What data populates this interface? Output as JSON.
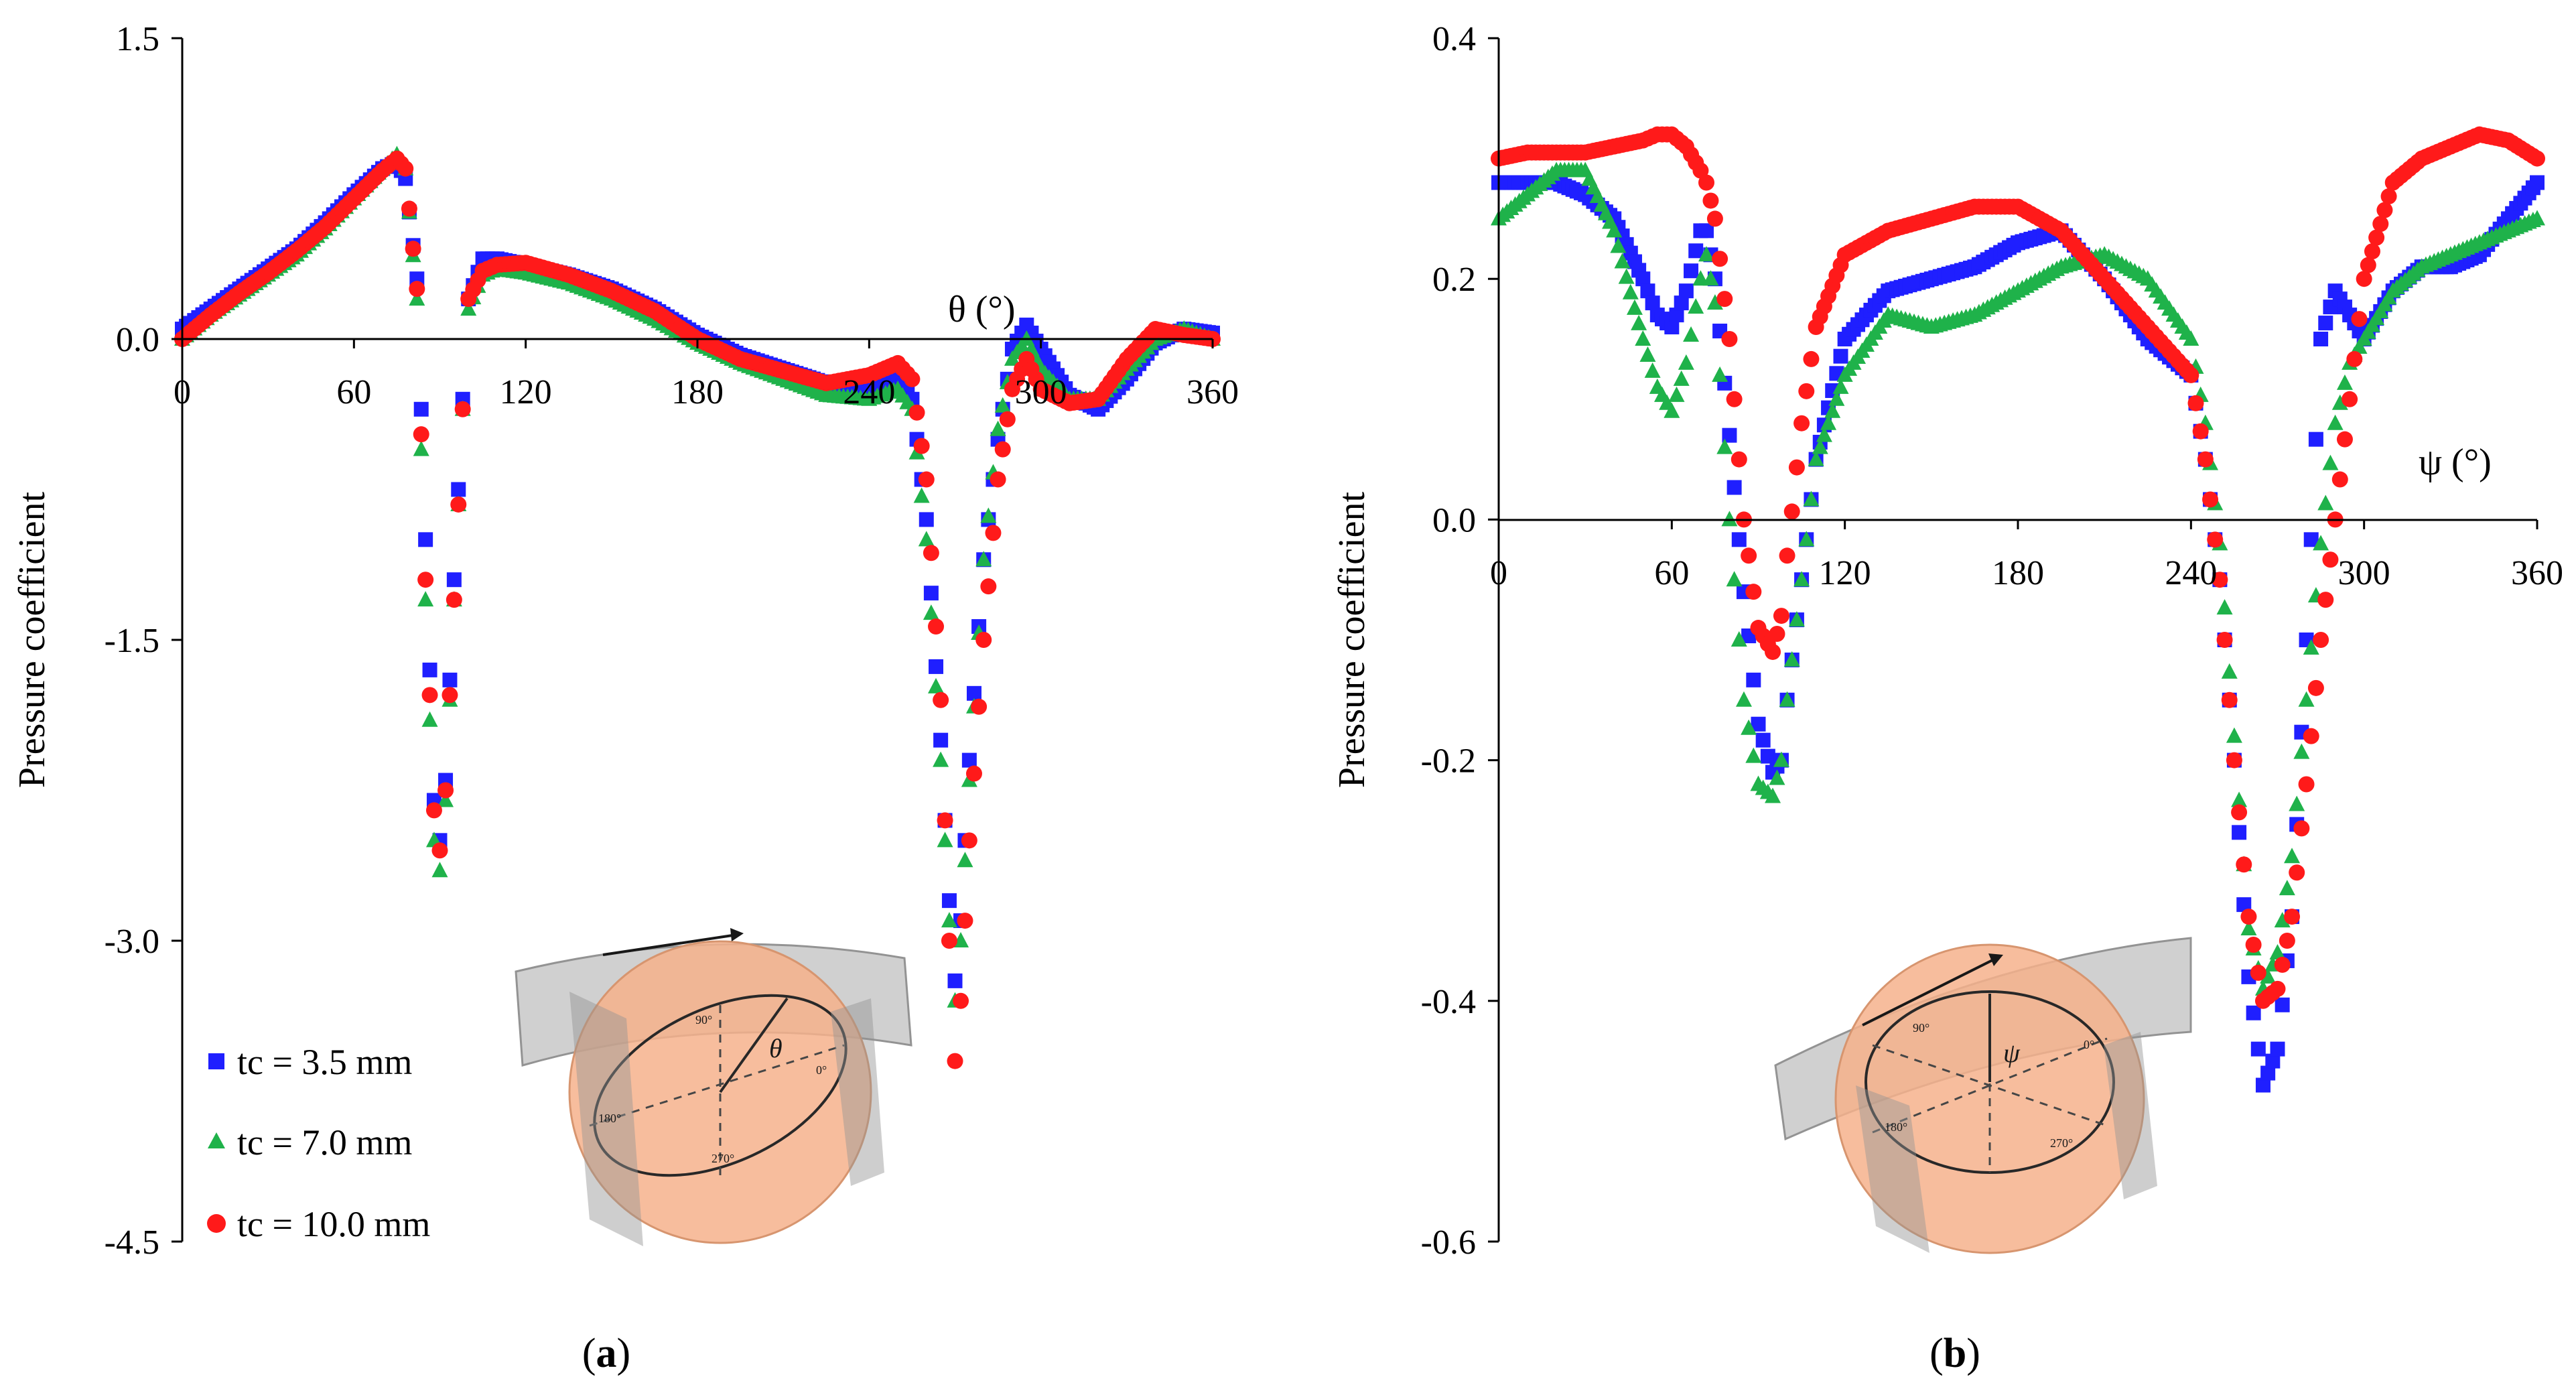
{
  "chart_data": [
    {
      "panel": "a",
      "type": "scatter",
      "caption": "(a)",
      "caption_letter": "a",
      "xlabel": "θ (°)",
      "ylabel": "Pressure coefficient",
      "xlim": [
        0,
        360
      ],
      "ylim": [
        -4.5,
        1.5
      ],
      "x_ticks": [
        "0",
        "60",
        "120",
        "180",
        "240",
        "300",
        "360"
      ],
      "y_ticks": [
        "1.5",
        "0.0",
        "-1.5",
        "-3.0",
        "-4.5"
      ],
      "legend_position": "bottom-left",
      "grid": false,
      "series": [
        {
          "name": "tc = 3.5 mm",
          "color": "#1f1fff",
          "marker": "square",
          "x": [
            0,
            10,
            20,
            30,
            40,
            50,
            60,
            70,
            75,
            78,
            82,
            85,
            88,
            90,
            92,
            95,
            98,
            100,
            105,
            110,
            120,
            135,
            150,
            165,
            180,
            195,
            210,
            225,
            240,
            250,
            255,
            260,
            265,
            268,
            270,
            272,
            275,
            280,
            285,
            290,
            295,
            300,
            310,
            320,
            330,
            340,
            350,
            360
          ],
          "y": [
            0.05,
            0.15,
            0.25,
            0.35,
            0.45,
            0.58,
            0.72,
            0.85,
            0.88,
            0.8,
            0.3,
            -1.0,
            -2.3,
            -2.5,
            -2.2,
            -1.2,
            -0.3,
            0.2,
            0.4,
            0.4,
            0.37,
            0.32,
            0.25,
            0.15,
            0.02,
            -0.08,
            -0.15,
            -0.22,
            -0.25,
            -0.2,
            -0.3,
            -0.9,
            -2.0,
            -2.8,
            -3.2,
            -2.9,
            -2.1,
            -1.1,
            -0.5,
            -0.05,
            0.07,
            -0.05,
            -0.28,
            -0.35,
            -0.2,
            -0.02,
            0.05,
            0.03
          ]
        },
        {
          "name": "tc = 7.0 mm",
          "color": "#1fb24a",
          "marker": "triangle",
          "x": [
            0,
            10,
            20,
            30,
            40,
            50,
            60,
            70,
            75,
            78,
            82,
            85,
            88,
            90,
            92,
            95,
            98,
            100,
            105,
            110,
            120,
            135,
            150,
            165,
            180,
            195,
            210,
            225,
            240,
            250,
            255,
            260,
            265,
            268,
            270,
            272,
            275,
            280,
            285,
            290,
            295,
            300,
            310,
            320,
            330,
            340,
            350,
            360
          ],
          "y": [
            0.0,
            0.12,
            0.22,
            0.32,
            0.42,
            0.55,
            0.7,
            0.85,
            0.92,
            0.85,
            0.2,
            -1.3,
            -2.5,
            -2.65,
            -2.3,
            -1.3,
            -0.35,
            0.15,
            0.32,
            0.35,
            0.33,
            0.28,
            0.2,
            0.1,
            -0.02,
            -0.12,
            -0.2,
            -0.28,
            -0.3,
            -0.25,
            -0.35,
            -1.0,
            -2.1,
            -2.9,
            -3.3,
            -3.0,
            -2.2,
            -1.1,
            -0.45,
            -0.1,
            0.0,
            -0.15,
            -0.3,
            -0.3,
            -0.15,
            0.0,
            0.05,
            0.0
          ]
        },
        {
          "name": "tc = 10.0 mm",
          "color": "#ff1a1a",
          "marker": "circle",
          "x": [
            0,
            10,
            20,
            30,
            40,
            50,
            60,
            70,
            75,
            78,
            82,
            85,
            88,
            90,
            92,
            95,
            98,
            100,
            105,
            110,
            120,
            135,
            150,
            165,
            180,
            195,
            210,
            225,
            240,
            250,
            255,
            260,
            265,
            268,
            270,
            272,
            275,
            280,
            285,
            290,
            295,
            300,
            310,
            320,
            330,
            340,
            350,
            360
          ],
          "y": [
            0.0,
            0.12,
            0.23,
            0.33,
            0.44,
            0.56,
            0.7,
            0.84,
            0.9,
            0.85,
            0.25,
            -1.2,
            -2.35,
            -2.55,
            -2.25,
            -1.3,
            -0.35,
            0.2,
            0.34,
            0.37,
            0.38,
            0.32,
            0.24,
            0.14,
            0.0,
            -0.1,
            -0.16,
            -0.22,
            -0.18,
            -0.12,
            -0.2,
            -0.7,
            -1.8,
            -3.0,
            -3.6,
            -3.3,
            -2.5,
            -1.5,
            -0.7,
            -0.25,
            -0.1,
            -0.25,
            -0.32,
            -0.3,
            -0.1,
            0.05,
            0.02,
            0.0
          ]
        }
      ]
    },
    {
      "panel": "b",
      "type": "scatter",
      "caption": "(b)",
      "caption_letter": "b",
      "xlabel": "ψ (°)",
      "ylabel": "Pressure coefficient",
      "xlim": [
        0,
        360
      ],
      "ylim": [
        -0.6,
        0.4
      ],
      "x_ticks": [
        "0",
        "60",
        "120",
        "180",
        "240",
        "300",
        "360"
      ],
      "y_ticks": [
        "0.4",
        "0.2",
        "0.0",
        "-0.2",
        "-0.4",
        "-0.6"
      ],
      "grid": false,
      "series": [
        {
          "name": "tc = 3.5 mm",
          "color": "#1f1fff",
          "marker": "square",
          "x": [
            0,
            10,
            20,
            30,
            40,
            50,
            55,
            60,
            65,
            70,
            72,
            75,
            80,
            85,
            90,
            95,
            98,
            100,
            105,
            110,
            120,
            135,
            150,
            165,
            180,
            195,
            210,
            225,
            240,
            245,
            250,
            255,
            260,
            265,
            270,
            275,
            280,
            285,
            290,
            295,
            300,
            310,
            320,
            330,
            340,
            350,
            360
          ],
          "y": [
            0.28,
            0.28,
            0.28,
            0.27,
            0.25,
            0.2,
            0.17,
            0.16,
            0.19,
            0.24,
            0.24,
            0.2,
            0.07,
            -0.06,
            -0.17,
            -0.21,
            -0.2,
            -0.15,
            -0.05,
            0.05,
            0.15,
            0.19,
            0.2,
            0.21,
            0.23,
            0.24,
            0.2,
            0.15,
            0.12,
            0.05,
            -0.05,
            -0.2,
            -0.38,
            -0.47,
            -0.44,
            -0.33,
            -0.1,
            0.15,
            0.19,
            0.17,
            0.15,
            0.19,
            0.21,
            0.21,
            0.22,
            0.25,
            0.28
          ]
        },
        {
          "name": "tc = 7.0 mm",
          "color": "#1fb24a",
          "marker": "triangle",
          "x": [
            0,
            10,
            20,
            30,
            40,
            50,
            55,
            60,
            65,
            70,
            72,
            75,
            80,
            85,
            90,
            95,
            98,
            100,
            105,
            110,
            120,
            135,
            150,
            165,
            180,
            195,
            210,
            225,
            240,
            245,
            250,
            255,
            260,
            265,
            270,
            275,
            280,
            285,
            290,
            295,
            300,
            310,
            320,
            330,
            340,
            350,
            360
          ],
          "y": [
            0.25,
            0.27,
            0.29,
            0.29,
            0.24,
            0.15,
            0.11,
            0.09,
            0.13,
            0.2,
            0.22,
            0.18,
            0.0,
            -0.15,
            -0.22,
            -0.23,
            -0.2,
            -0.15,
            -0.05,
            0.05,
            0.12,
            0.17,
            0.16,
            0.17,
            0.19,
            0.21,
            0.22,
            0.2,
            0.15,
            0.08,
            -0.02,
            -0.18,
            -0.34,
            -0.39,
            -0.36,
            -0.28,
            -0.15,
            -0.02,
            0.08,
            0.13,
            0.15,
            0.19,
            0.21,
            0.22,
            0.23,
            0.24,
            0.25
          ]
        },
        {
          "name": "tc = 10.0 mm",
          "color": "#ff1a1a",
          "marker": "circle",
          "x": [
            0,
            10,
            20,
            30,
            40,
            50,
            55,
            60,
            65,
            70,
            72,
            75,
            80,
            85,
            90,
            95,
            98,
            100,
            105,
            110,
            120,
            135,
            150,
            165,
            180,
            195,
            210,
            225,
            240,
            245,
            250,
            255,
            260,
            265,
            270,
            275,
            280,
            285,
            290,
            295,
            300,
            310,
            320,
            330,
            340,
            350,
            360
          ],
          "y": [
            0.3,
            0.305,
            0.305,
            0.305,
            0.31,
            0.315,
            0.32,
            0.32,
            0.31,
            0.29,
            0.28,
            0.25,
            0.15,
            0.0,
            -0.09,
            -0.11,
            -0.08,
            -0.03,
            0.08,
            0.16,
            0.22,
            0.24,
            0.25,
            0.26,
            0.26,
            0.24,
            0.2,
            0.16,
            0.12,
            0.05,
            -0.05,
            -0.2,
            -0.33,
            -0.4,
            -0.39,
            -0.33,
            -0.22,
            -0.1,
            0.0,
            0.1,
            0.2,
            0.28,
            0.3,
            0.31,
            0.32,
            0.315,
            0.3
          ]
        }
      ]
    }
  ]
}
